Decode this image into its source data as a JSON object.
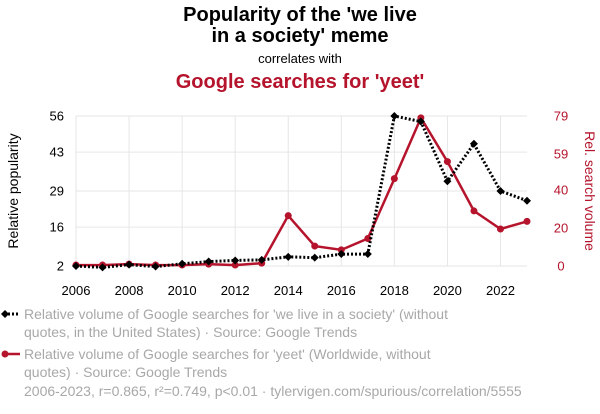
{
  "header": {
    "title_line1": "Popularity of the 'we live",
    "title_line2": "in a society' meme",
    "connector": "correlates with",
    "subtitle": "Google searches for 'yeet'"
  },
  "colors": {
    "series1": "#000000",
    "series2": "#b5142c",
    "grid": "#e6e6e6",
    "muted": "#a8a8a8"
  },
  "legend": {
    "series1_text": "Relative volume of Google searches for 'we live in a society' (without quotes, in the United States) · Source: Google Trends",
    "series2_text": "Relative volume of Google searches for 'yeet' (Worldwide, without quotes) · Source: Google Trends"
  },
  "footer": {
    "text": "2006-2023, r=0.865, r²=0.749, p<0.01 · tylervigen.com/spurious/correlation/5555"
  },
  "chart_data": {
    "type": "line",
    "x": [
      2006,
      2007,
      2008,
      2009,
      2010,
      2011,
      2012,
      2013,
      2014,
      2015,
      2016,
      2017,
      2018,
      2019,
      2020,
      2021,
      2022,
      2023
    ],
    "xticks": [
      "2006",
      "2008",
      "2010",
      "2012",
      "2014",
      "2016",
      "2018",
      "2020",
      "2022"
    ],
    "xlim": [
      2006,
      2023
    ],
    "ylabel_left": "Relative popularity",
    "ylabel_right": "Rel. search volume",
    "ylim_left": [
      2,
      56
    ],
    "yticks_left": [
      "2",
      "16",
      "29",
      "43",
      "56"
    ],
    "ylim_right": [
      0,
      79
    ],
    "yticks_right": [
      "0",
      "20",
      "40",
      "59",
      "79"
    ],
    "grid": true,
    "series": [
      {
        "axis": "left",
        "style": "dotted",
        "marker": "diamond",
        "values": [
          2,
          1.5,
          2.5,
          1.8,
          2.8,
          3.6,
          4,
          4.2,
          5.3,
          5,
          6.3,
          6.3,
          56,
          54,
          32.5,
          46,
          29,
          25.5
        ]
      },
      {
        "axis": "right",
        "style": "solid",
        "marker": "circle",
        "values": [
          0.5,
          0.5,
          1,
          0.5,
          0.5,
          1,
          0.5,
          1.5,
          26.5,
          10.5,
          8.5,
          14.5,
          46,
          78,
          55,
          29,
          19.5,
          23.5
        ]
      }
    ]
  }
}
